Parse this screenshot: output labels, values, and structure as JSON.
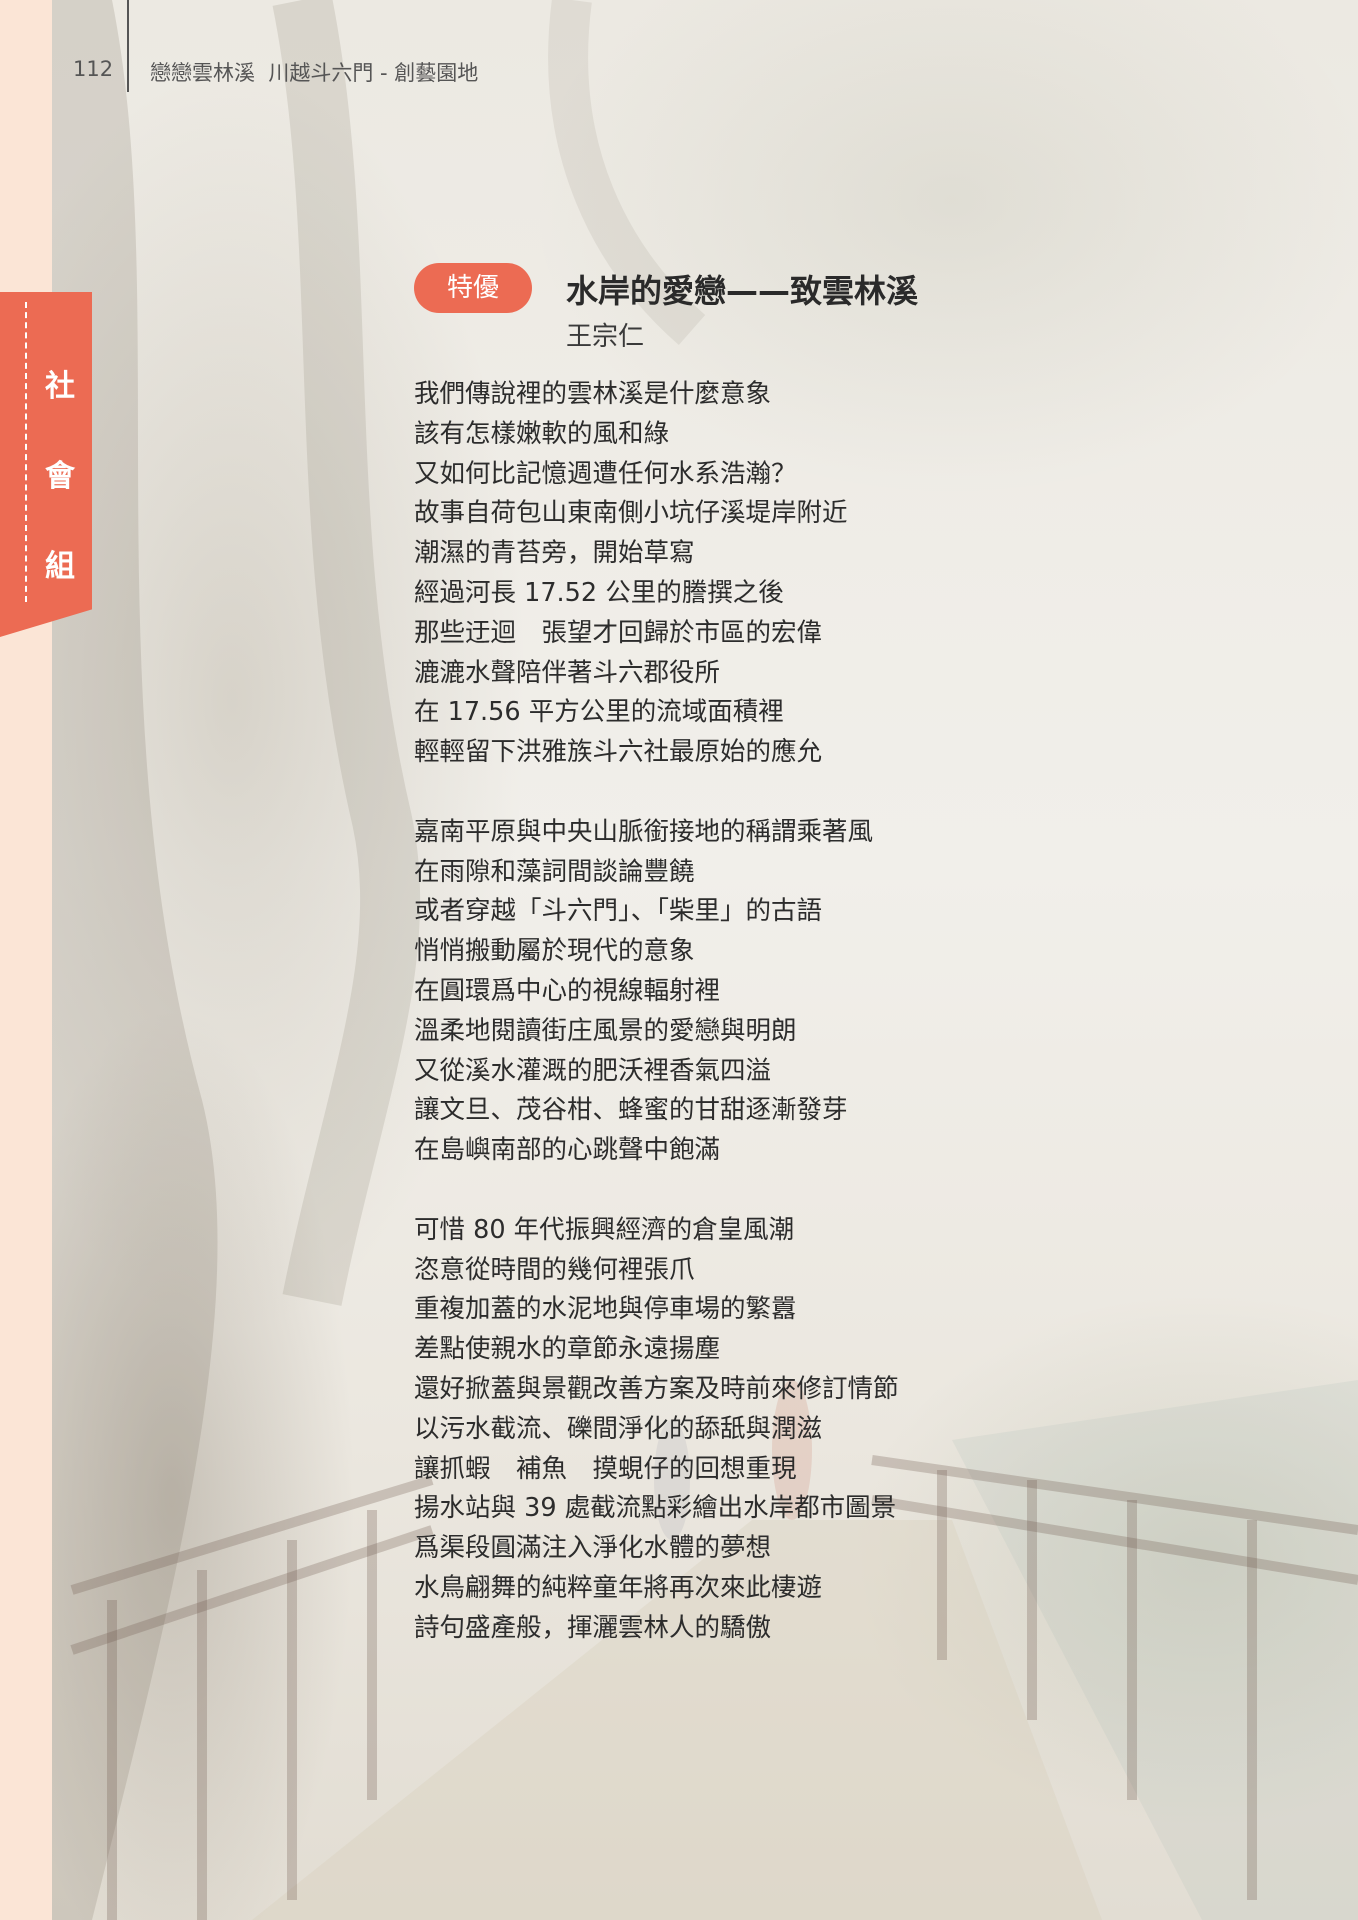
{
  "header": {
    "page_number": "112",
    "running_title": "戀戀雲林溪  川越斗六門 - 創藝園地"
  },
  "side_tab": {
    "label": "社會組"
  },
  "entry": {
    "award": "特優",
    "title": "水岸的愛戀——致雲林溪",
    "author": "王宗仁"
  },
  "poem": {
    "stanzas": [
      [
        "我們傳說裡的雲林溪是什麼意象",
        "該有怎樣嫩軟的風和綠",
        "又如何比記憶週遭任何水系浩瀚？",
        "故事自荷包山東南側小坑仔溪堤岸附近",
        "潮濕的青苔旁，開始草寫",
        "經過河長 17.52 公里的謄撰之後",
        "那些迂迴　張望才回歸於市區的宏偉",
        "漉漉水聲陪伴著斗六郡役所",
        "在 17.56 平方公里的流域面積裡",
        "輕輕留下洪雅族斗六社最原始的應允"
      ],
      [
        "嘉南平原與中央山脈銜接地的稱謂乘著風",
        "在雨隙和藻詞間談論豐饒",
        "或者穿越「斗六門」、「柴里」的古語",
        "悄悄搬動屬於現代的意象",
        "在圓環爲中心的視線輻射裡",
        "溫柔地閱讀街庄風景的愛戀與明朗",
        "又從溪水灌溉的肥沃裡香氣四溢",
        "讓文旦、茂谷柑、蜂蜜的甘甜逐漸發芽",
        "在島嶼南部的心跳聲中飽滿"
      ],
      [
        "可惜 80 年代振興經濟的倉皇風潮",
        "恣意從時間的幾何裡張爪",
        "重複加蓋的水泥地與停車場的繁囂",
        "差點使親水的章節永遠揚塵",
        "還好掀蓋與景觀改善方案及時前來修訂情節",
        "以污水截流、礫間淨化的舔舐與潤滋",
        "讓抓蝦　補魚　摸蜆仔的回想重現",
        "揚水站與 39 處截流點彩繪出水岸都市圖景",
        "爲渠段圓滿注入淨化水體的夢想",
        "水鳥翩舞的純粹童年將再次來此棲遊",
        "詩句盛產般，揮灑雲林人的驕傲"
      ]
    ]
  }
}
